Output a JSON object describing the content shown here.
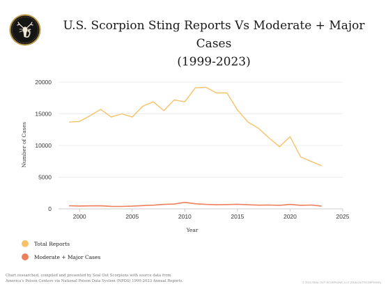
{
  "header": {
    "title": "U.S. Scorpion Sting Reports Vs Moderate + Major Cases",
    "subtitle": "(1999-2023)"
  },
  "footer": {
    "source_line1": "Chart researched, compiled and presented by Seal Out Scorpions with source data from",
    "source_line2": "America's Poison Centers via National Poison Data System (NPDS) 1999-2023 Annual Reports.",
    "copyright": "© 2024 SEAL OUT SCORPIONS, LLC (SEALOUTSCORPIONS)"
  },
  "colors": {
    "total": "#F5C267",
    "moderate": "#EE7F5C",
    "grid": "#E6E6E6",
    "axis": "#CCCCCC"
  },
  "chart_data": {
    "type": "line",
    "xlabel": "Year",
    "ylabel": "Number of Cases",
    "xlim": [
      1998,
      2025
    ],
    "ylim": [
      0,
      20000
    ],
    "xticks": [
      2000,
      2005,
      2010,
      2015,
      2020,
      2025
    ],
    "yticks": [
      0,
      5000,
      10000,
      15000,
      20000
    ],
    "grid": "horizontal",
    "legend": "bottom-left",
    "x": [
      1999,
      2000,
      2001,
      2002,
      2003,
      2004,
      2005,
      2006,
      2007,
      2008,
      2009,
      2010,
      2011,
      2012,
      2013,
      2014,
      2015,
      2016,
      2017,
      2018,
      2019,
      2020,
      2021,
      2022,
      2023
    ],
    "series": [
      {
        "name": "Total Reports",
        "color": "#F5C267",
        "values": [
          13700,
          13800,
          14700,
          15700,
          14500,
          15000,
          14500,
          16200,
          16900,
          15500,
          17200,
          16900,
          19100,
          19200,
          18300,
          18300,
          15600,
          13700,
          12700,
          11200,
          9800,
          11400,
          8200,
          7500,
          6800
        ]
      },
      {
        "name": "Moderate + Major Cases",
        "color": "#EE7F5C",
        "values": [
          480,
          450,
          470,
          480,
          400,
          380,
          430,
          520,
          580,
          700,
          760,
          1020,
          800,
          700,
          650,
          680,
          720,
          650,
          580,
          600,
          560,
          700,
          560,
          600,
          430
        ]
      }
    ]
  }
}
